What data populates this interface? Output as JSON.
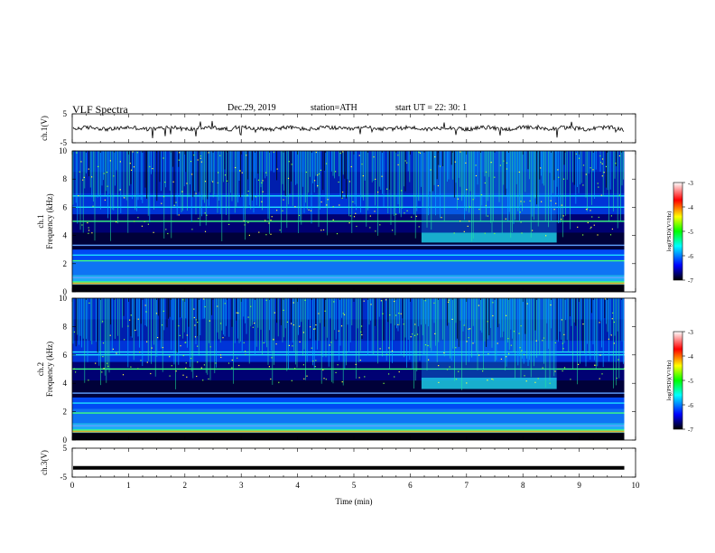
{
  "header": {
    "title": "VLF  Spectra",
    "date": "Dec.29, 2019",
    "station": "station=ATH",
    "start": "start  UT  =   22: 30: 1"
  },
  "chart_data": [
    {
      "id": "ch1-waveform",
      "type": "line",
      "ylabel": "ch.1(V)",
      "ylim": [
        -5,
        5
      ],
      "yticks": [
        "5",
        "-5"
      ],
      "xlim": [
        0,
        10
      ],
      "trace_color": "#000000",
      "baseline": 0,
      "series": [
        {
          "x": [
            0,
            9.8
          ],
          "y": [
            0,
            0
          ]
        }
      ],
      "grid": false
    },
    {
      "id": "ch1-spectrogram",
      "type": "heatmap",
      "ylabel": "ch.1\nFrequency (kHz)",
      "ylim": [
        0,
        10
      ],
      "yticks": [
        "0",
        "2",
        "4",
        "6",
        "8",
        "10"
      ],
      "xlim": [
        0,
        10
      ],
      "data_extent_min": 9.8,
      "colorbar": {
        "label": "log(PSD)(V²/Hz)",
        "range": [
          -7,
          -3
        ],
        "ticks": [
          "-3",
          "-4",
          "-5",
          "-6",
          "-7"
        ],
        "colors": [
          "#000000",
          "#0000ff",
          "#00ffff",
          "#00ff00",
          "#ffff00",
          "#ff0000",
          "#ffffff"
        ]
      },
      "features": {
        "chorus_band_khz": [
          3.5,
          4.2
        ],
        "chorus_start_min": 6.2,
        "chorus_end_min": 8.6,
        "tone_lines_khz": [
          2.2,
          6.8
        ]
      }
    },
    {
      "id": "ch2-spectrogram",
      "type": "heatmap",
      "ylabel": "ch.2\nFrequency (kHz)",
      "ylim": [
        0,
        10
      ],
      "yticks": [
        "0",
        "2",
        "4",
        "6",
        "8",
        "10"
      ],
      "xlim": [
        0,
        10
      ],
      "data_extent_min": 9.8,
      "colorbar": {
        "label": "log(PSD)(V²/Hz)",
        "range": [
          -7,
          -3
        ],
        "ticks": [
          "-3",
          "-4",
          "-5",
          "-6",
          "-7"
        ],
        "colors": [
          "#000000",
          "#0000ff",
          "#00ffff",
          "#00ff00",
          "#ffff00",
          "#ff0000",
          "#ffffff"
        ]
      },
      "features": {
        "chorus_band_khz": [
          3.6,
          4.4
        ],
        "chorus_start_min": 6.2,
        "chorus_end_min": 8.6,
        "tone_lines_khz": [
          1.9,
          6.2
        ]
      }
    },
    {
      "id": "ch3-waveform",
      "type": "line",
      "ylabel": "ch.3(V)",
      "ylim": [
        -5,
        5
      ],
      "yticks": [
        "5",
        "-5"
      ],
      "xlim": [
        0,
        10
      ],
      "trace_color": "#000000",
      "baseline": -1.8,
      "series": [
        {
          "x": [
            0,
            9.8
          ],
          "y": [
            -1.8,
            -1.8
          ]
        }
      ],
      "grid": false
    }
  ],
  "xaxis": {
    "label": "Time  (min)",
    "ticks": [
      "0",
      "1",
      "2",
      "3",
      "4",
      "5",
      "6",
      "7",
      "8",
      "9",
      "10"
    ]
  }
}
